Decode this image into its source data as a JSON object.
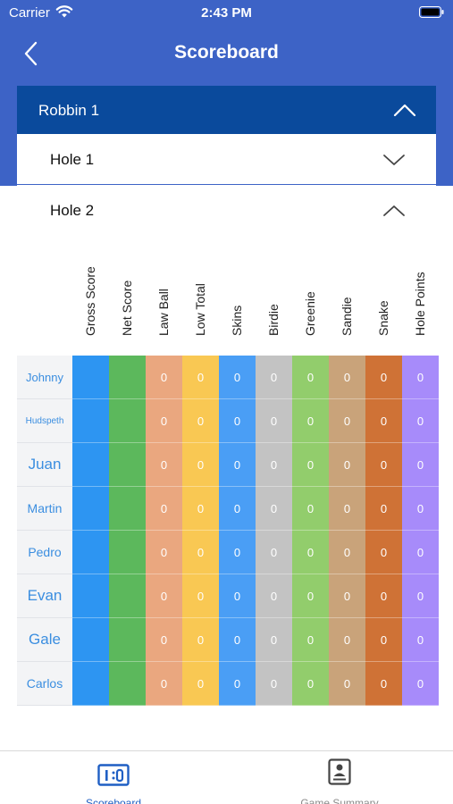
{
  "status": {
    "carrier": "Carrier",
    "time": "2:43 PM"
  },
  "nav": {
    "title": "Scoreboard"
  },
  "group": {
    "label": "Robbin 1"
  },
  "holes": [
    {
      "label": "Hole 1"
    },
    {
      "label": "Hole 2"
    }
  ],
  "table": {
    "columns": [
      {
        "label": "Gross Score",
        "color": "#2d95f2"
      },
      {
        "label": "Net Score",
        "color": "#5cb85c"
      },
      {
        "label": "Law Ball",
        "color": "#eaa77f"
      },
      {
        "label": "Low Total",
        "color": "#f9c853"
      },
      {
        "label": "Skins",
        "color": "#4a9ef5"
      },
      {
        "label": "Birdie",
        "color": "#c3c3c3"
      },
      {
        "label": "Greenie",
        "color": "#92cd6c"
      },
      {
        "label": "Sandie",
        "color": "#c9a37a"
      },
      {
        "label": "Snake",
        "color": "#cf7236"
      },
      {
        "label": "Hole Points",
        "color": "#a78bfa"
      }
    ],
    "rows": [
      {
        "name": "Johnny",
        "values": [
          "",
          "",
          "0",
          "0",
          "0",
          "0",
          "0",
          "0",
          "0",
          "0"
        ]
      },
      {
        "name": "Hudspeth",
        "values": [
          "",
          "",
          "0",
          "0",
          "0",
          "0",
          "0",
          "0",
          "0",
          "0"
        ]
      },
      {
        "name": "Juan",
        "values": [
          "",
          "",
          "0",
          "0",
          "0",
          "0",
          "0",
          "0",
          "0",
          "0"
        ]
      },
      {
        "name": "Martin",
        "values": [
          "",
          "",
          "0",
          "0",
          "0",
          "0",
          "0",
          "0",
          "0",
          "0"
        ]
      },
      {
        "name": "Pedro",
        "values": [
          "",
          "",
          "0",
          "0",
          "0",
          "0",
          "0",
          "0",
          "0",
          "0"
        ]
      },
      {
        "name": "Evan",
        "values": [
          "",
          "",
          "0",
          "0",
          "0",
          "0",
          "0",
          "0",
          "0",
          "0"
        ]
      },
      {
        "name": "Gale",
        "values": [
          "",
          "",
          "0",
          "0",
          "0",
          "0",
          "0",
          "0",
          "0",
          "0"
        ]
      },
      {
        "name": "Carlos",
        "values": [
          "",
          "",
          "0",
          "0",
          "0",
          "0",
          "0",
          "0",
          "0",
          "0"
        ]
      }
    ]
  },
  "tabs": {
    "scoreboard": {
      "label": "Scoreboard",
      "icon": "scoreboard-icon",
      "color": "#1f5fc4"
    },
    "summary": {
      "label": "Game Summary",
      "icon": "summary-card-icon",
      "color": "#8a8a8a"
    }
  }
}
